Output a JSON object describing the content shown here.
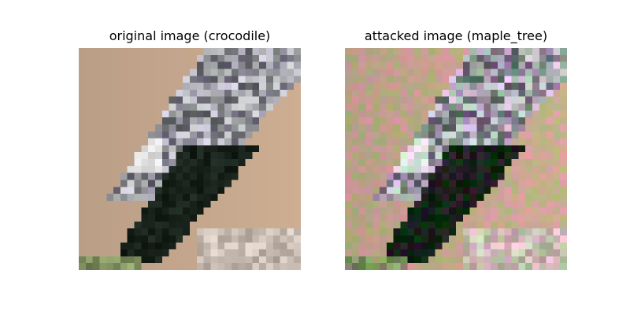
{
  "figure": {
    "panels": [
      {
        "title": "original image (crocodile)"
      },
      {
        "title": "attacked image (maple_tree)"
      }
    ]
  }
}
